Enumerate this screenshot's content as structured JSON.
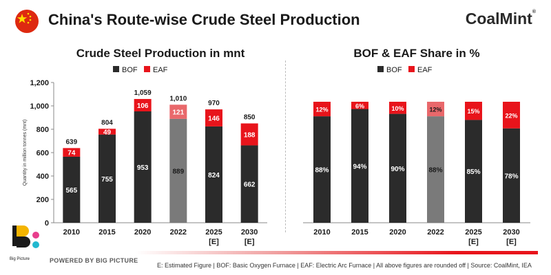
{
  "header": {
    "title": "China's Route-wise Crude Steel Production",
    "brand": "CoalMint",
    "brand_mark": "®"
  },
  "colors": {
    "bof": "#2b2b2b",
    "eaf": "#e8141b",
    "bof_2022": "#7a7a7a",
    "eaf_2022": "#e9686b",
    "flag_red": "#de2910",
    "flag_star": "#ffde00"
  },
  "chart_data": [
    {
      "type": "bar",
      "stacked": true,
      "title": "Crude Steel Production in mnt",
      "ylabel": "Quantity in million tonnes (mnt)",
      "xlabel": "",
      "categories": [
        "2010",
        "2015",
        "2020",
        "2022",
        "2025\n[E]",
        "2030\n[E]"
      ],
      "series": [
        {
          "name": "BOF",
          "values": [
            565,
            755,
            953,
            889,
            824,
            662
          ]
        },
        {
          "name": "EAF",
          "values": [
            74,
            49,
            106,
            121,
            146,
            188
          ]
        }
      ],
      "totals": [
        639,
        804,
        1059,
        1010,
        970,
        850
      ],
      "total_labels": [
        "639",
        "804",
        "1,059",
        "1,010",
        "970",
        "850"
      ],
      "ylim": [
        0,
        1200
      ],
      "yticks": [
        "0",
        "200",
        "400",
        "600",
        "800",
        "1,000",
        "1,200"
      ],
      "legend": "top-center",
      "grid": false
    },
    {
      "type": "bar",
      "stacked": true,
      "title": "BOF & EAF Share in %",
      "xlabel": "",
      "ylabel": "",
      "categories": [
        "2010",
        "2015",
        "2020",
        "2022",
        "2025\n[E]",
        "2030\n[E]"
      ],
      "series": [
        {
          "name": "BOF",
          "values": [
            88,
            94,
            90,
            88,
            85,
            78
          ]
        },
        {
          "name": "EAF",
          "values": [
            12,
            6,
            10,
            12,
            15,
            22
          ]
        }
      ],
      "ylim": [
        0,
        100
      ],
      "legend": "top-center",
      "grid": false
    }
  ],
  "footer": {
    "logo_text": "Big Picture",
    "powered_by": "POWERED BY BIG PICTURE",
    "note": "E: Estimated Figure | BOF: Basic Oxygen Furnace | EAF: Electric Arc Furnace | All above figures are rounded off | Source: CoalMint, IEA"
  }
}
